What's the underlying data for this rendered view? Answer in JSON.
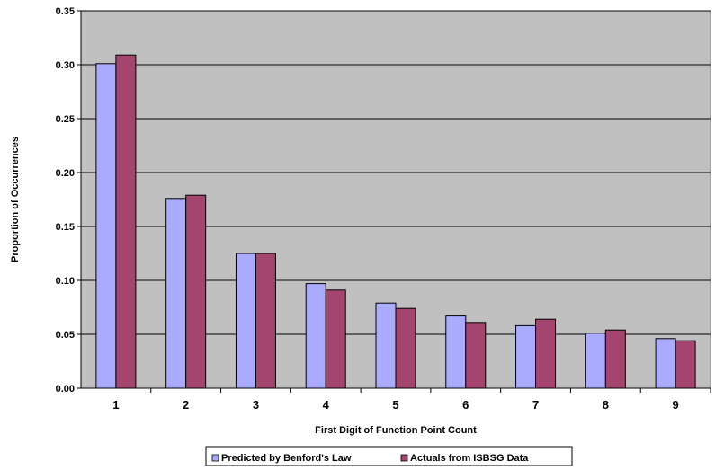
{
  "chart_data": {
    "type": "bar",
    "title": "",
    "xlabel": "First Digit of Function Point Count",
    "ylabel": "Proportion of Occurrences",
    "categories": [
      "1",
      "2",
      "3",
      "4",
      "5",
      "6",
      "7",
      "8",
      "9"
    ],
    "series": [
      {
        "name": "Predicted by Benford's Law",
        "color": "#aaaaff",
        "values": [
          0.301,
          0.176,
          0.125,
          0.097,
          0.079,
          0.067,
          0.058,
          0.051,
          0.046
        ]
      },
      {
        "name": "Actuals from ISBSG Data",
        "color": "#a4456f",
        "values": [
          0.309,
          0.179,
          0.125,
          0.091,
          0.074,
          0.061,
          0.064,
          0.054,
          0.044
        ]
      }
    ],
    "ylim": [
      0,
      0.35
    ],
    "yticks": [
      "0.00",
      "0.05",
      "0.10",
      "0.15",
      "0.20",
      "0.25",
      "0.30",
      "0.35"
    ],
    "grid": true,
    "plot_background": "#c0c0c0",
    "legend_position": "bottom"
  }
}
